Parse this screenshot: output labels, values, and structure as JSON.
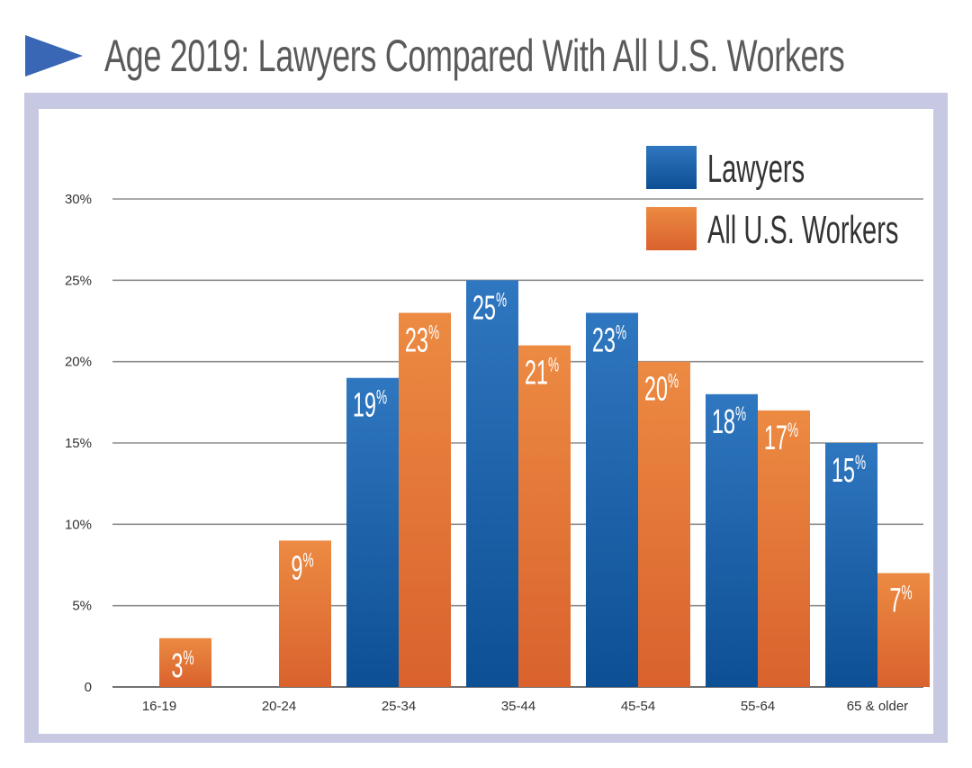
{
  "header": {
    "title": "Age 2019: Lawyers Compared With All U.S. Workers",
    "arrow_icon": "right-triangle-icon",
    "arrow_color": "#3a66b6"
  },
  "chart_data": {
    "type": "bar",
    "title": "Age 2019: Lawyers Compared With All U.S. Workers",
    "xlabel": "",
    "ylabel": "",
    "categories": [
      "16-19",
      "20-24",
      "25-34",
      "35-44",
      "45-54",
      "55-64",
      "65 & older"
    ],
    "series": [
      {
        "name": "Lawyers",
        "color": "#1f5fa8",
        "values": [
          null,
          null,
          19,
          25,
          23,
          18,
          15
        ],
        "labels": [
          "",
          "",
          "19%",
          "25%",
          "23%",
          "18%",
          "15%"
        ]
      },
      {
        "name": "All U.S. Workers",
        "color": "#e6793a",
        "values": [
          3,
          9,
          23,
          21,
          20,
          17,
          7
        ],
        "labels": [
          "3%",
          "9%",
          "23%",
          "21%",
          "20%",
          "17%",
          "7%"
        ]
      }
    ],
    "yticks": [
      0,
      5,
      10,
      15,
      20,
      25,
      30
    ],
    "ytick_labels": [
      "0",
      "5%",
      "10%",
      "15%",
      "20%",
      "25%",
      "30%"
    ],
    "ylim": [
      0,
      30
    ],
    "grid": true,
    "legend": {
      "position": "top-right",
      "entries": [
        "Lawyers",
        "All U.S. Workers"
      ]
    }
  }
}
